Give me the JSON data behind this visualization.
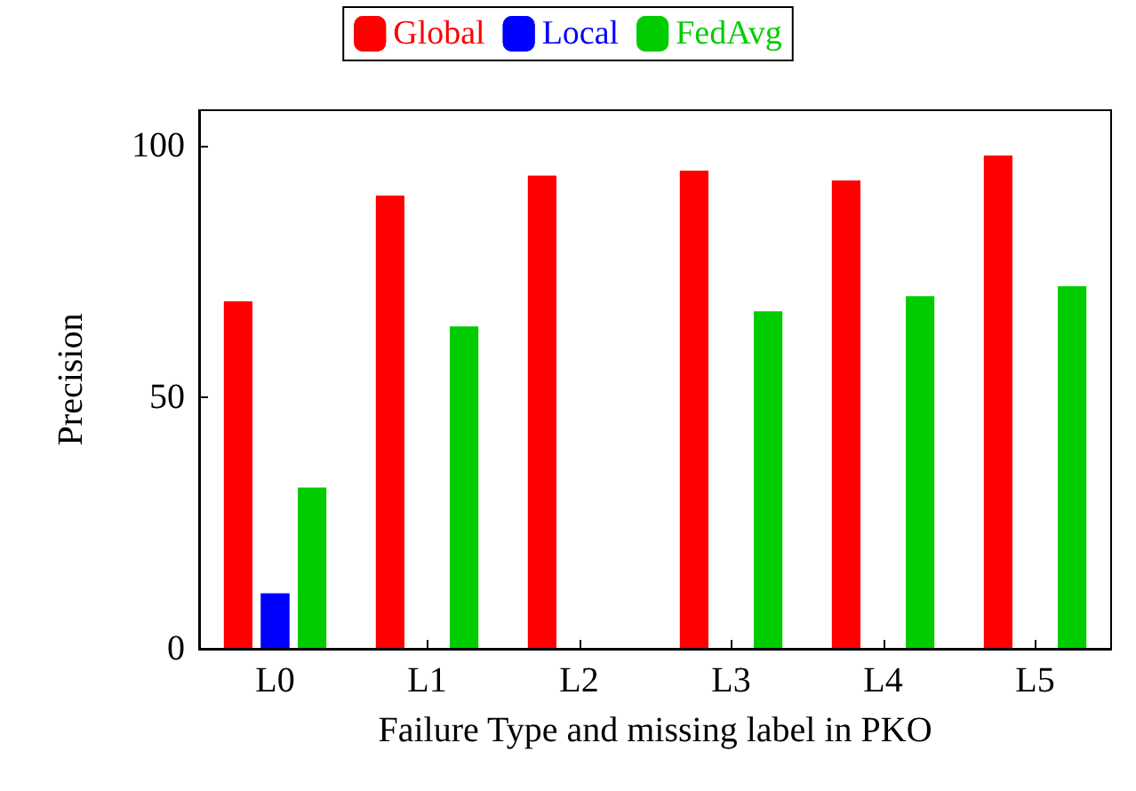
{
  "chart_data": {
    "type": "bar",
    "xlabel": "Failure Type and missing label in PKO",
    "ylabel": "Precision",
    "categories": [
      "L0",
      "L1",
      "L2",
      "L3",
      "L4",
      "L5"
    ],
    "series": [
      {
        "name": "Global",
        "color": "#ff0000",
        "values": [
          69,
          90,
          94,
          95,
          93,
          98
        ]
      },
      {
        "name": "Local",
        "color": "#0000ff",
        "values": [
          11,
          0,
          0,
          0,
          0,
          0
        ]
      },
      {
        "name": "FedAvg",
        "color": "#00cc00",
        "values": [
          32,
          64,
          0,
          67,
          70,
          72
        ]
      }
    ],
    "ylim": [
      0,
      107
    ],
    "yticks": [
      0,
      50,
      100
    ],
    "grid": false,
    "legend": "top"
  }
}
